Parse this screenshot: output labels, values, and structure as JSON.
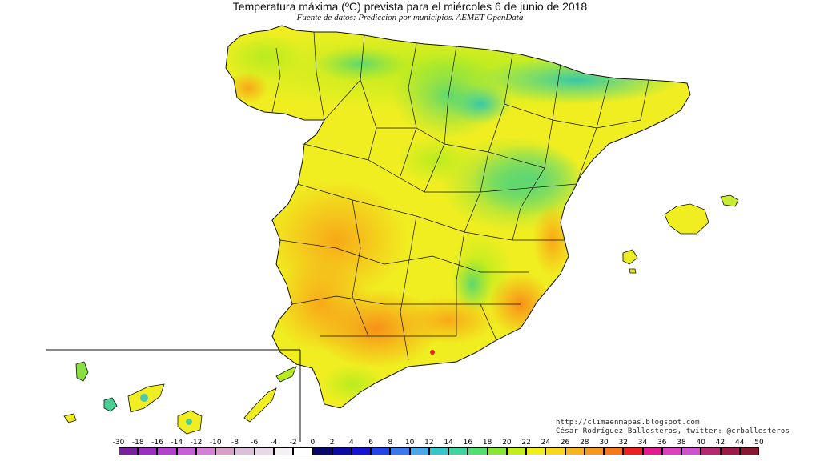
{
  "title": "Temperatura máxima (ºC) prevista para el miércoles 6 de junio de 2018",
  "subtitle": "Fuente de datos: Prediccion por municipios. AEMET OpenData",
  "credits": {
    "blog": "http://climaenmapas.blogspot.com",
    "author": "César Rodríguez Ballesteros, twitter: @crballesteros"
  },
  "legend": {
    "labels": [
      "-30",
      "-18",
      "-16",
      "-14",
      "-12",
      "-10",
      "-8",
      "-6",
      "-4",
      "-2",
      "0",
      "2",
      "4",
      "6",
      "8",
      "10",
      "12",
      "14",
      "16",
      "18",
      "20",
      "22",
      "24",
      "26",
      "28",
      "30",
      "32",
      "34",
      "36",
      "38",
      "40",
      "42",
      "44",
      "50"
    ],
    "colors": [
      "#7a1fa2",
      "#9b2fbf",
      "#b53fd0",
      "#c95fd8",
      "#d67fd8",
      "#d89fc8",
      "#dcbfd8",
      "#e8d8e8",
      "#f4f0f4",
      "#ffffff",
      "#06066e",
      "#0a0aa8",
      "#1414d8",
      "#2244ee",
      "#3a78f0",
      "#48a8ee",
      "#30c8c8",
      "#38d8a0",
      "#50e070",
      "#88e830",
      "#c0f018",
      "#f0f018",
      "#f8d818",
      "#f8b418",
      "#f89818",
      "#f87818",
      "#f02020",
      "#e81890",
      "#e040c0",
      "#d050d0",
      "#b82870",
      "#a01848",
      "#881830"
    ]
  },
  "map": {
    "region": "Península Ibérica, Baleares y Canarias",
    "inset": "Canarias"
  }
}
